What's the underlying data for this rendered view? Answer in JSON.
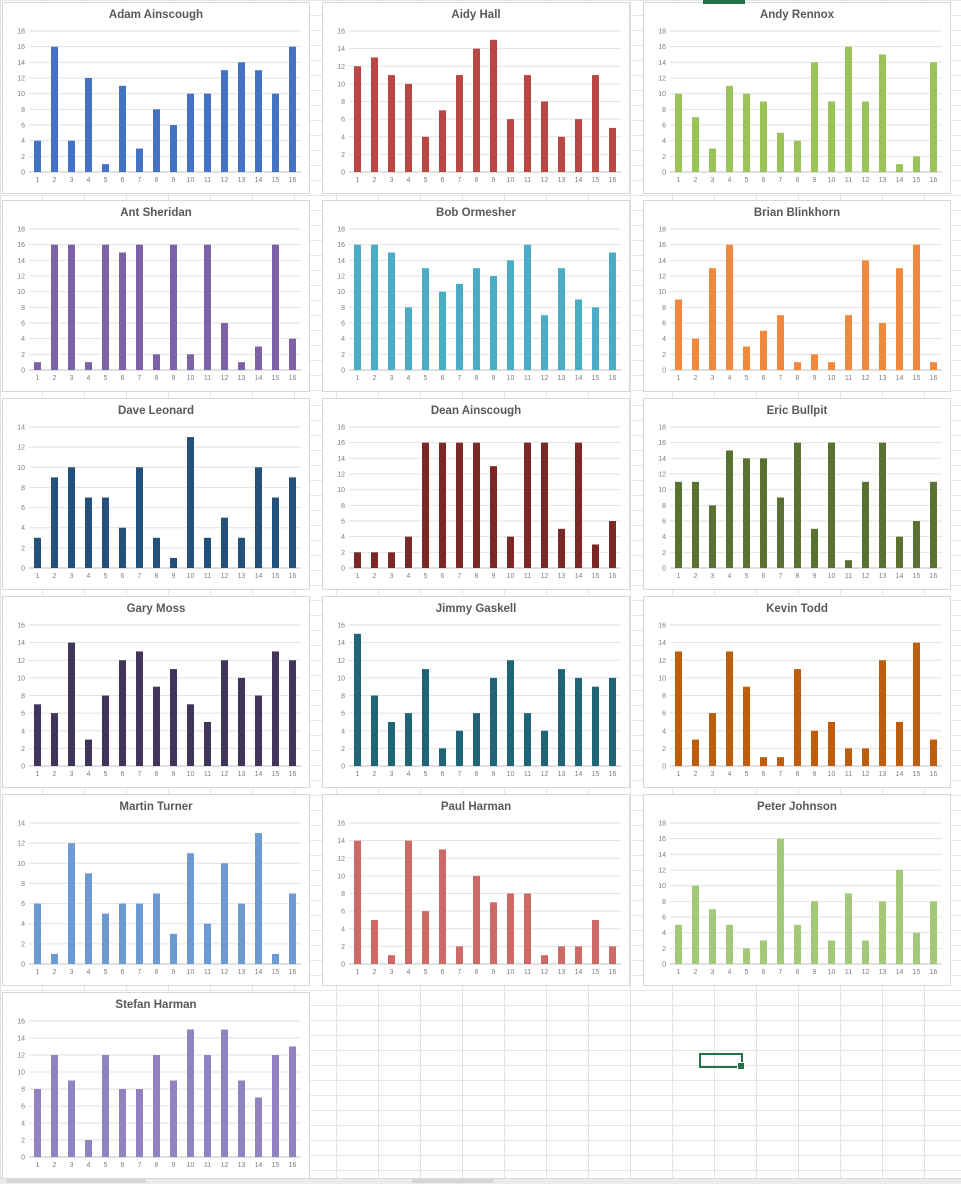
{
  "workbook": {
    "selection_color": "#217346",
    "gridline_color": "#e3e7ec",
    "chart_border_color": "#d7d7d7",
    "title_color": "#595959",
    "axis_label_color": "#7f7f7f",
    "plot_gridline_color": "#e2e2e2",
    "axis_line_color": "#bfbfbf"
  },
  "chart_data": [
    {
      "type": "bar",
      "title": "Adam Ainscough",
      "color": "#4472C4",
      "ylim": [
        0,
        18
      ],
      "ytick_step": 2,
      "grid": true,
      "legend": false,
      "categories": [
        "1",
        "2",
        "3",
        "4",
        "5",
        "6",
        "7",
        "8",
        "9",
        "10",
        "11",
        "12",
        "13",
        "14",
        "15",
        "16"
      ],
      "values": [
        4,
        16,
        4,
        12,
        1,
        11,
        3,
        8,
        6,
        10,
        10,
        13,
        14,
        13,
        10,
        16
      ]
    },
    {
      "type": "bar",
      "title": "Aidy Hall",
      "color": "#BA4743",
      "ylim": [
        0,
        16
      ],
      "ytick_step": 2,
      "grid": true,
      "legend": false,
      "categories": [
        "1",
        "2",
        "3",
        "4",
        "5",
        "6",
        "7",
        "8",
        "9",
        "10",
        "11",
        "12",
        "13",
        "14",
        "15",
        "16"
      ],
      "values": [
        12,
        13,
        11,
        10,
        4,
        7,
        11,
        14,
        15,
        6,
        11,
        8,
        4,
        6,
        11,
        5
      ]
    },
    {
      "type": "bar",
      "title": "Andy Rennox",
      "color": "#9CC358",
      "ylim": [
        0,
        18
      ],
      "ytick_step": 2,
      "grid": true,
      "legend": false,
      "categories": [
        "1",
        "2",
        "3",
        "4",
        "5",
        "6",
        "7",
        "8",
        "9",
        "10",
        "11",
        "12",
        "13",
        "14",
        "15",
        "16"
      ],
      "values": [
        10,
        7,
        3,
        11,
        10,
        9,
        5,
        4,
        14,
        9,
        16,
        9,
        15,
        1,
        2,
        14
      ]
    },
    {
      "type": "bar",
      "title": "Ant Sheridan",
      "color": "#7D62A8",
      "ylim": [
        0,
        18
      ],
      "ytick_step": 2,
      "grid": true,
      "legend": false,
      "categories": [
        "1",
        "2",
        "3",
        "4",
        "5",
        "6",
        "7",
        "8",
        "9",
        "10",
        "11",
        "12",
        "13",
        "14",
        "15",
        "16"
      ],
      "values": [
        1,
        16,
        16,
        1,
        16,
        15,
        16,
        2,
        16,
        2,
        16,
        6,
        1,
        3,
        16,
        4
      ]
    },
    {
      "type": "bar",
      "title": "Bob Ormesher",
      "color": "#4BACC6",
      "ylim": [
        0,
        18
      ],
      "ytick_step": 2,
      "grid": true,
      "legend": false,
      "categories": [
        "1",
        "2",
        "3",
        "4",
        "5",
        "6",
        "7",
        "8",
        "9",
        "10",
        "11",
        "12",
        "13",
        "14",
        "15",
        "16"
      ],
      "values": [
        16,
        16,
        15,
        8,
        13,
        10,
        11,
        13,
        12,
        14,
        16,
        7,
        13,
        9,
        8,
        15
      ]
    },
    {
      "type": "bar",
      "title": "Brian Blinkhorn",
      "color": "#F0883E",
      "ylim": [
        0,
        18
      ],
      "ytick_step": 2,
      "grid": true,
      "legend": false,
      "categories": [
        "1",
        "2",
        "3",
        "4",
        "5",
        "6",
        "7",
        "8",
        "9",
        "10",
        "11",
        "12",
        "13",
        "14",
        "15",
        "16"
      ],
      "values": [
        9,
        4,
        13,
        16,
        3,
        5,
        7,
        1,
        2,
        1,
        7,
        14,
        6,
        13,
        16,
        1
      ]
    },
    {
      "type": "bar",
      "title": "Dave Leonard",
      "color": "#24517C",
      "ylim": [
        0,
        14
      ],
      "ytick_step": 2,
      "grid": true,
      "legend": false,
      "categories": [
        "1",
        "2",
        "3",
        "4",
        "5",
        "6",
        "7",
        "8",
        "9",
        "10",
        "11",
        "12",
        "13",
        "14",
        "15",
        "16"
      ],
      "values": [
        3,
        9,
        10,
        7,
        7,
        4,
        10,
        3,
        1,
        13,
        3,
        5,
        3,
        10,
        7,
        9
      ]
    },
    {
      "type": "bar",
      "title": "Dean Ainscough",
      "color": "#7B2927",
      "ylim": [
        0,
        18
      ],
      "ytick_step": 2,
      "grid": true,
      "legend": false,
      "categories": [
        "1",
        "2",
        "3",
        "4",
        "5",
        "6",
        "7",
        "8",
        "9",
        "10",
        "11",
        "12",
        "13",
        "14",
        "15",
        "16"
      ],
      "values": [
        2,
        2,
        2,
        4,
        16,
        16,
        16,
        16,
        13,
        4,
        16,
        16,
        5,
        16,
        3,
        6
      ]
    },
    {
      "type": "bar",
      "title": "Eric Bullpit",
      "color": "#5A7231",
      "ylim": [
        0,
        18
      ],
      "ytick_step": 2,
      "grid": true,
      "legend": false,
      "categories": [
        "1",
        "2",
        "3",
        "4",
        "5",
        "6",
        "7",
        "8",
        "9",
        "10",
        "11",
        "12",
        "13",
        "14",
        "15",
        "16"
      ],
      "values": [
        11,
        11,
        8,
        15,
        14,
        14,
        9,
        16,
        5,
        16,
        1,
        11,
        16,
        4,
        6,
        11
      ]
    },
    {
      "type": "bar",
      "title": "Gary Moss",
      "color": "#41355C",
      "ylim": [
        0,
        16
      ],
      "ytick_step": 2,
      "grid": true,
      "legend": false,
      "categories": [
        "1",
        "2",
        "3",
        "4",
        "5",
        "6",
        "7",
        "8",
        "9",
        "10",
        "11",
        "12",
        "13",
        "14",
        "15",
        "16"
      ],
      "values": [
        7,
        6,
        14,
        3,
        8,
        12,
        13,
        9,
        11,
        7,
        5,
        12,
        10,
        8,
        13,
        12
      ]
    },
    {
      "type": "bar",
      "title": "Jimmy Gaskell",
      "color": "#1F6577",
      "ylim": [
        0,
        16
      ],
      "ytick_step": 2,
      "grid": true,
      "legend": false,
      "categories": [
        "1",
        "2",
        "3",
        "4",
        "5",
        "6",
        "7",
        "8",
        "9",
        "10",
        "11",
        "12",
        "13",
        "14",
        "15",
        "16"
      ],
      "values": [
        15,
        8,
        5,
        6,
        11,
        2,
        4,
        6,
        10,
        12,
        6,
        4,
        11,
        10,
        9,
        10
      ]
    },
    {
      "type": "bar",
      "title": "Kevin Todd",
      "color": "#BE5D0C",
      "ylim": [
        0,
        16
      ],
      "ytick_step": 2,
      "grid": true,
      "legend": false,
      "categories": [
        "1",
        "2",
        "3",
        "4",
        "5",
        "6",
        "7",
        "8",
        "9",
        "10",
        "11",
        "12",
        "13",
        "14",
        "15",
        "16"
      ],
      "values": [
        13,
        3,
        6,
        13,
        9,
        1,
        1,
        11,
        4,
        5,
        2,
        2,
        12,
        5,
        14,
        3
      ]
    },
    {
      "type": "bar",
      "title": "Martin Turner",
      "color": "#6D9BD1",
      "ylim": [
        0,
        14
      ],
      "ytick_step": 2,
      "grid": true,
      "legend": false,
      "categories": [
        "1",
        "2",
        "3",
        "4",
        "5",
        "6",
        "7",
        "8",
        "9",
        "10",
        "11",
        "12",
        "13",
        "14",
        "15",
        "16"
      ],
      "values": [
        6,
        1,
        12,
        9,
        5,
        6,
        6,
        7,
        3,
        11,
        4,
        10,
        6,
        13,
        1,
        7
      ]
    },
    {
      "type": "bar",
      "title": "Paul Harman",
      "color": "#CD6A66",
      "ylim": [
        0,
        16
      ],
      "ytick_step": 2,
      "grid": true,
      "legend": false,
      "categories": [
        "1",
        "2",
        "3",
        "4",
        "5",
        "6",
        "7",
        "8",
        "9",
        "10",
        "11",
        "12",
        "13",
        "14",
        "15",
        "16"
      ],
      "values": [
        14,
        5,
        1,
        14,
        6,
        13,
        2,
        10,
        7,
        8,
        8,
        1,
        2,
        2,
        5,
        2
      ]
    },
    {
      "type": "bar",
      "title": "Peter Johnson",
      "color": "#A3C978",
      "ylim": [
        0,
        18
      ],
      "ytick_step": 2,
      "grid": true,
      "legend": false,
      "categories": [
        "1",
        "2",
        "3",
        "4",
        "5",
        "6",
        "7",
        "8",
        "9",
        "10",
        "11",
        "12",
        "13",
        "14",
        "15",
        "16"
      ],
      "values": [
        5,
        10,
        7,
        5,
        2,
        3,
        16,
        5,
        8,
        3,
        9,
        3,
        8,
        12,
        4,
        8
      ]
    },
    {
      "type": "bar",
      "title": "Stefan Harman",
      "color": "#9183C1",
      "ylim": [
        0,
        16
      ],
      "ytick_step": 2,
      "grid": true,
      "legend": false,
      "categories": [
        "1",
        "2",
        "3",
        "4",
        "5",
        "6",
        "7",
        "8",
        "9",
        "10",
        "11",
        "12",
        "13",
        "14",
        "15",
        "16"
      ],
      "values": [
        8,
        12,
        9,
        2,
        12,
        8,
        8,
        12,
        9,
        15,
        12,
        15,
        9,
        7,
        12,
        13
      ]
    }
  ]
}
